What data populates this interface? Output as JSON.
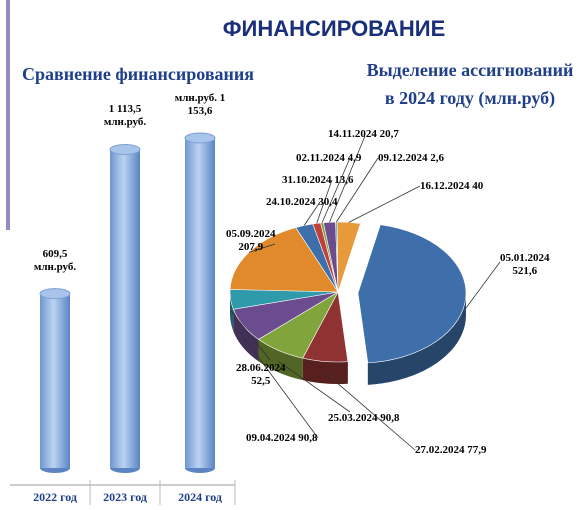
{
  "title": "ФИНАНСИРОВАНИЕ",
  "chart_data": [
    {
      "type": "bar",
      "title": "Сравнение финансирования",
      "categories": [
        "2022 год",
        "2023 год",
        "2024 год"
      ],
      "values": [
        609.5,
        1113.5,
        1153.6
      ],
      "value_labels": [
        "609,5 млн.руб.",
        "1 113,5 млн.руб.",
        "млн.руб. 1 153,6"
      ],
      "color": "#8fb3e3"
    },
    {
      "type": "pie",
      "title": "Выделение ассигнований в 2024 году (млн.руб)",
      "categories": [
        "05.01.2024",
        "27.02.2024",
        "25.03.2024",
        "09.04.2024",
        "28.06.2024",
        "05.09.2024",
        "24.10.2024",
        "31.10.2024",
        "02.11.2024",
        "14.11.2024",
        "09.12.2024",
        "16.12.2024"
      ],
      "values": [
        521.6,
        77.9,
        90.8,
        90.8,
        52.5,
        207.9,
        30.4,
        13.6,
        4.9,
        20.7,
        2.6,
        40
      ],
      "value_labels": [
        "521,6",
        "77,9",
        "90,8",
        "90,8",
        "52,5",
        "207,9",
        "30,4",
        "13,6",
        "4,9",
        "20,7",
        "2,6",
        "40"
      ],
      "colors": [
        "#3f6faa",
        "#8e3232",
        "#82a43c",
        "#6b4d8f",
        "#2f9aaa",
        "#e08a2c",
        "#3f6faa",
        "#c0413b",
        "#82a43c",
        "#6b4d8f",
        "#2f9aaa",
        "#e89a3a"
      ]
    }
  ]
}
